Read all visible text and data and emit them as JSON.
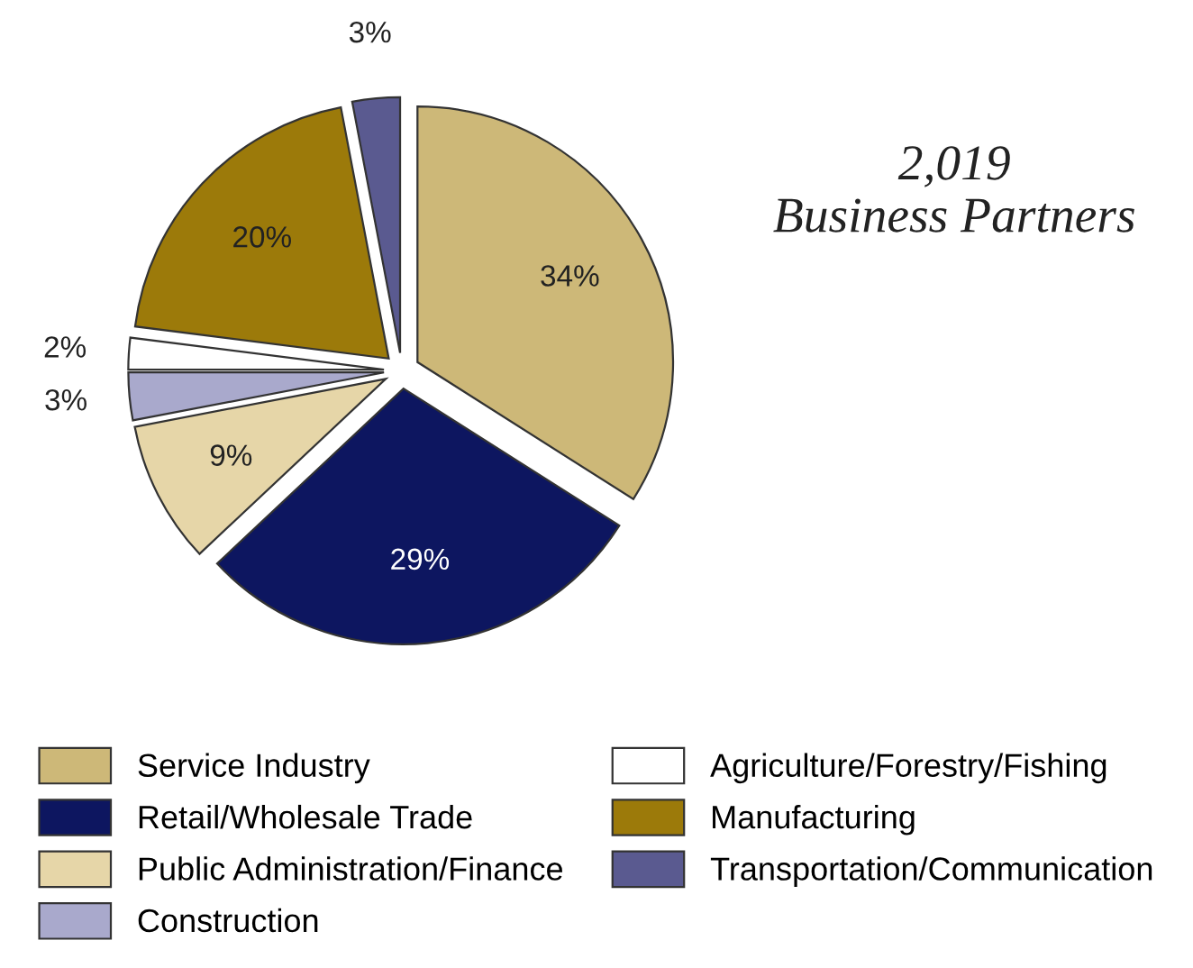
{
  "chart_data": {
    "type": "pie",
    "categories": [
      "Service Industry",
      "Retail/Wholesale Trade",
      "Public Administration/Finance",
      "Construction",
      "Agriculture/Forestry/Fishing",
      "Manufacturing",
      "Transportation/Communication"
    ],
    "values": [
      34,
      29,
      9,
      3,
      2,
      20,
      3
    ],
    "value_labels": [
      "34%",
      "29%",
      "9%",
      "3%",
      "2%",
      "20%",
      "3%"
    ],
    "colors": [
      "#cdb878",
      "#0d1660",
      "#e6d6a8",
      "#a9a9cc",
      "#ffffff",
      "#9c7a0a",
      "#5a5a90"
    ],
    "annotations": [
      "2,019\nBusiness Partners"
    ],
    "legend": "bottom"
  }
}
